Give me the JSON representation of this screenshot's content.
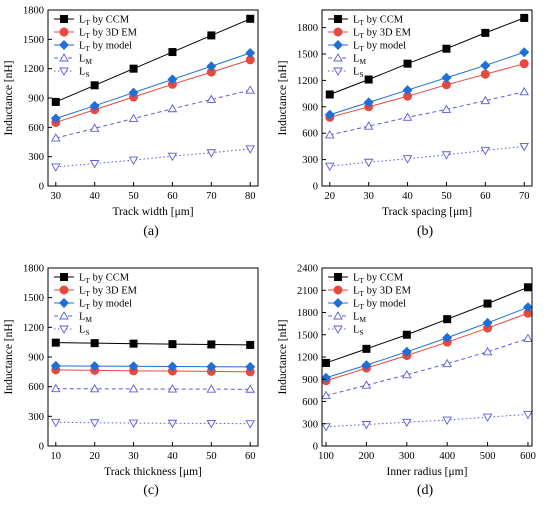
{
  "legend_entries": [
    {
      "base": "L",
      "sub": "T",
      "suffix": " by CCM",
      "color": "#000000",
      "marker": "square",
      "dash": "solid"
    },
    {
      "base": "L",
      "sub": "T",
      "suffix": " by 3D EM",
      "color": "#e8493f",
      "marker": "circle",
      "dash": "solid"
    },
    {
      "base": "L",
      "sub": "T",
      "suffix": " by model",
      "color": "#1f6fd6",
      "marker": "diamond",
      "dash": "solid"
    },
    {
      "base": "L",
      "sub": "M",
      "suffix": "",
      "color": "#5b5bd6",
      "marker": "triangle-open",
      "dash": "dashed"
    },
    {
      "base": "L",
      "sub": "S",
      "suffix": "",
      "color": "#5b5bd6",
      "marker": "triangle-down-open",
      "dash": "dotted"
    }
  ],
  "chart_data": [
    {
      "type": "line",
      "panel_label": "(a)",
      "xlabel": "Track width [μm]",
      "ylabel": "Inductance [nH]",
      "x": [
        30,
        40,
        50,
        60,
        70,
        80
      ],
      "xlim": [
        28,
        82
      ],
      "ylim": [
        0,
        1800
      ],
      "yticks": [
        0,
        300,
        600,
        900,
        1200,
        1500,
        1800
      ],
      "xticks": [
        30,
        40,
        50,
        60,
        70,
        80
      ],
      "legend": "top-left",
      "series": [
        {
          "name": "LT by CCM",
          "values": [
            860,
            1030,
            1200,
            1370,
            1540,
            1710
          ]
        },
        {
          "name": "LT by 3D EM",
          "values": [
            650,
            780,
            910,
            1040,
            1165,
            1290
          ]
        },
        {
          "name": "LT by model",
          "values": [
            690,
            820,
            955,
            1090,
            1225,
            1360
          ]
        },
        {
          "name": "LM",
          "values": [
            490,
            590,
            690,
            790,
            885,
            980
          ]
        },
        {
          "name": "LS",
          "values": [
            195,
            230,
            265,
            305,
            340,
            380
          ]
        }
      ]
    },
    {
      "type": "line",
      "panel_label": "(b)",
      "xlabel": "Track spacing [μm]",
      "ylabel": "Inductance [nH]",
      "x": [
        20,
        30,
        40,
        50,
        60,
        70
      ],
      "xlim": [
        18,
        72
      ],
      "ylim": [
        0,
        2000
      ],
      "yticks": [
        0,
        300,
        600,
        900,
        1200,
        1500,
        1800
      ],
      "xticks": [
        20,
        30,
        40,
        50,
        60,
        70
      ],
      "legend": "top-left",
      "series": [
        {
          "name": "LT by CCM",
          "values": [
            1040,
            1210,
            1390,
            1560,
            1740,
            1910
          ]
        },
        {
          "name": "LT by 3D EM",
          "values": [
            780,
            900,
            1020,
            1150,
            1270,
            1390
          ]
        },
        {
          "name": "LT by model",
          "values": [
            810,
            950,
            1090,
            1230,
            1370,
            1520
          ]
        },
        {
          "name": "LM",
          "values": [
            580,
            680,
            780,
            870,
            970,
            1070
          ]
        },
        {
          "name": "LS",
          "values": [
            225,
            270,
            310,
            355,
            405,
            450
          ]
        }
      ]
    },
    {
      "type": "line",
      "panel_label": "(c)",
      "xlabel": "Track thickness [μm]",
      "ylabel": "Inductance [nH]",
      "x": [
        10,
        20,
        30,
        40,
        50,
        60
      ],
      "xlim": [
        8,
        62
      ],
      "ylim": [
        0,
        1800
      ],
      "yticks": [
        0,
        300,
        600,
        900,
        1200,
        1500,
        1800
      ],
      "xticks": [
        10,
        20,
        30,
        40,
        50,
        60
      ],
      "legend": "top-left",
      "series": [
        {
          "name": "LT by CCM",
          "values": [
            1045,
            1040,
            1035,
            1030,
            1027,
            1022
          ]
        },
        {
          "name": "LT by 3D EM",
          "values": [
            770,
            765,
            760,
            758,
            755,
            750
          ]
        },
        {
          "name": "LT by model",
          "values": [
            810,
            808,
            806,
            804,
            802,
            800
          ]
        },
        {
          "name": "LM",
          "values": [
            580,
            578,
            577,
            576,
            575,
            574
          ]
        },
        {
          "name": "LS",
          "values": [
            240,
            235,
            232,
            230,
            228,
            226
          ]
        }
      ]
    },
    {
      "type": "line",
      "panel_label": "(d)",
      "xlabel": "Inner radius [μm]",
      "ylabel": "Inductance [nH]",
      "x": [
        100,
        200,
        300,
        400,
        500,
        600
      ],
      "xlim": [
        90,
        610
      ],
      "ylim": [
        0,
        2400
      ],
      "yticks": [
        0,
        300,
        600,
        900,
        1200,
        1500,
        1800,
        2100,
        2400
      ],
      "xticks": [
        100,
        200,
        300,
        400,
        500,
        600
      ],
      "legend": "top-left",
      "series": [
        {
          "name": "LT by CCM",
          "values": [
            1120,
            1310,
            1500,
            1710,
            1920,
            2140
          ]
        },
        {
          "name": "LT by 3D EM",
          "values": [
            880,
            1050,
            1220,
            1400,
            1590,
            1790
          ]
        },
        {
          "name": "LT by model",
          "values": [
            920,
            1090,
            1270,
            1460,
            1660,
            1870
          ]
        },
        {
          "name": "LM",
          "values": [
            680,
            820,
            960,
            1110,
            1270,
            1450
          ]
        },
        {
          "name": "LS",
          "values": [
            260,
            290,
            320,
            350,
            390,
            425
          ]
        }
      ]
    }
  ]
}
